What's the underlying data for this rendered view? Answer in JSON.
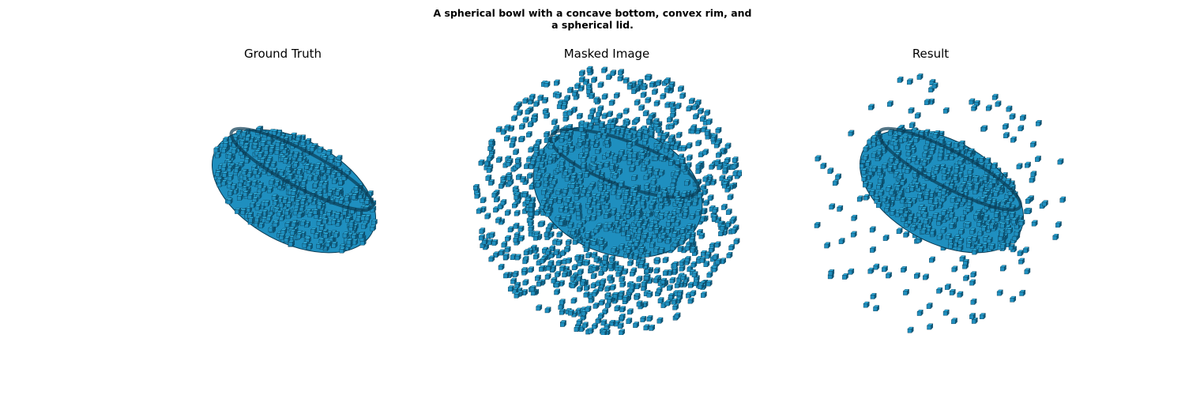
{
  "figure": {
    "title_line1": "A spherical bowl with a concave bottom, convex rim, and",
    "title_line2": "a spherical lid."
  },
  "panels": [
    {
      "id": "ground-truth",
      "title": "Ground Truth"
    },
    {
      "id": "masked-image",
      "title": "Masked Image"
    },
    {
      "id": "result",
      "title": "Result"
    }
  ],
  "colors": {
    "voxel_face": "#1f8fbf",
    "voxel_top": "#2fb0e0",
    "voxel_edge": "#0a3a52",
    "voxel_shadow": "#0e5a7c",
    "background": "#ffffff"
  }
}
